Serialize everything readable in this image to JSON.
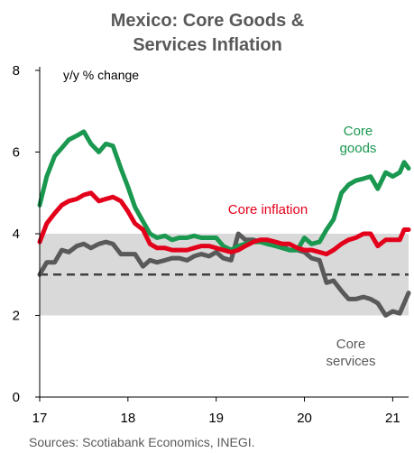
{
  "chart_data": {
    "type": "line",
    "title": [
      "Mexico: Core Goods &",
      "Services Inflation"
    ],
    "ylabel": "y/y % change",
    "xlabel": "",
    "source": "Sources: Scotiabank Economics, INEGI.",
    "ylim": [
      0,
      8
    ],
    "xlim": [
      2017.0,
      2021.18
    ],
    "y_ticks": [
      "0",
      "2",
      "4",
      "6",
      "8"
    ],
    "x_ticks": [
      {
        "value": 2017,
        "label": "17"
      },
      {
        "value": 2018,
        "label": "18"
      },
      {
        "value": 2019,
        "label": "19"
      },
      {
        "value": 2020,
        "label": "20"
      },
      {
        "value": 2021,
        "label": "21"
      }
    ],
    "target_band": {
      "low": 2,
      "high": 4,
      "color": "#d9d9d9"
    },
    "target_line": {
      "value": 3,
      "color": "#404040",
      "style": "dashed"
    },
    "grid": false,
    "series": [
      {
        "name": "Core services",
        "label_lines": [
          "Core",
          "services"
        ],
        "color": "#595959",
        "x": [
          2017.0,
          2017.08,
          2017.17,
          2017.25,
          2017.33,
          2017.42,
          2017.5,
          2017.58,
          2017.67,
          2017.75,
          2017.83,
          2017.92,
          2018.0,
          2018.08,
          2018.17,
          2018.25,
          2018.33,
          2018.42,
          2018.5,
          2018.58,
          2018.67,
          2018.75,
          2018.83,
          2018.92,
          2019.0,
          2019.08,
          2019.17,
          2019.25,
          2019.33,
          2019.42,
          2019.5,
          2019.58,
          2019.67,
          2019.75,
          2019.83,
          2019.92,
          2020.0,
          2020.08,
          2020.17,
          2020.25,
          2020.33,
          2020.42,
          2020.5,
          2020.58,
          2020.67,
          2020.75,
          2020.83,
          2020.92,
          2021.0,
          2021.08,
          2021.18
        ],
        "values": [
          3.0,
          3.3,
          3.3,
          3.6,
          3.55,
          3.7,
          3.75,
          3.65,
          3.75,
          3.8,
          3.75,
          3.5,
          3.5,
          3.5,
          3.2,
          3.35,
          3.3,
          3.35,
          3.4,
          3.4,
          3.35,
          3.45,
          3.5,
          3.45,
          3.55,
          3.4,
          3.35,
          4.0,
          3.85,
          3.85,
          3.8,
          3.8,
          3.75,
          3.7,
          3.6,
          3.6,
          3.55,
          3.4,
          3.35,
          2.8,
          2.85,
          2.6,
          2.4,
          2.4,
          2.45,
          2.4,
          2.3,
          2.0,
          2.1,
          2.05,
          2.55
        ]
      },
      {
        "name": "Core goods",
        "label_lines": [
          "Core",
          "goods"
        ],
        "color": "#1a9850",
        "x": [
          2017.0,
          2017.08,
          2017.17,
          2017.25,
          2017.33,
          2017.42,
          2017.5,
          2017.58,
          2017.67,
          2017.75,
          2017.83,
          2017.92,
          2018.0,
          2018.08,
          2018.17,
          2018.25,
          2018.33,
          2018.42,
          2018.5,
          2018.58,
          2018.67,
          2018.75,
          2018.83,
          2018.92,
          2019.0,
          2019.08,
          2019.17,
          2019.25,
          2019.33,
          2019.42,
          2019.5,
          2019.58,
          2019.67,
          2019.75,
          2019.83,
          2019.92,
          2020.0,
          2020.08,
          2020.17,
          2020.25,
          2020.33,
          2020.42,
          2020.5,
          2020.58,
          2020.67,
          2020.75,
          2020.83,
          2020.92,
          2021.0,
          2021.08,
          2021.13,
          2021.18
        ],
        "values": [
          4.7,
          5.4,
          5.9,
          6.1,
          6.3,
          6.4,
          6.5,
          6.2,
          6.0,
          6.2,
          6.15,
          5.6,
          5.15,
          4.65,
          4.3,
          4.0,
          3.9,
          3.95,
          3.85,
          3.9,
          3.9,
          3.95,
          3.9,
          3.9,
          3.9,
          3.7,
          3.6,
          3.7,
          3.75,
          3.8,
          3.8,
          3.75,
          3.7,
          3.65,
          3.6,
          3.6,
          3.9,
          3.75,
          3.8,
          4.1,
          4.35,
          5.0,
          5.2,
          5.3,
          5.35,
          5.4,
          5.1,
          5.5,
          5.4,
          5.5,
          5.75,
          5.6
        ]
      },
      {
        "name": "Core inflation",
        "label_lines": [
          "Core inflation"
        ],
        "color": "#e3001b",
        "x": [
          2017.0,
          2017.08,
          2017.17,
          2017.25,
          2017.33,
          2017.42,
          2017.5,
          2017.58,
          2017.67,
          2017.75,
          2017.83,
          2017.92,
          2018.0,
          2018.08,
          2018.17,
          2018.25,
          2018.33,
          2018.42,
          2018.5,
          2018.58,
          2018.67,
          2018.75,
          2018.83,
          2018.92,
          2019.0,
          2019.08,
          2019.17,
          2019.25,
          2019.33,
          2019.42,
          2019.5,
          2019.58,
          2019.67,
          2019.75,
          2019.83,
          2019.92,
          2020.0,
          2020.08,
          2020.17,
          2020.25,
          2020.33,
          2020.42,
          2020.5,
          2020.58,
          2020.67,
          2020.75,
          2020.83,
          2020.92,
          2021.0,
          2021.08,
          2021.13,
          2021.18
        ],
        "values": [
          3.8,
          4.25,
          4.5,
          4.7,
          4.8,
          4.85,
          4.95,
          5.0,
          4.8,
          4.85,
          4.9,
          4.8,
          4.55,
          4.25,
          4.1,
          3.75,
          3.65,
          3.65,
          3.6,
          3.6,
          3.6,
          3.65,
          3.7,
          3.7,
          3.65,
          3.6,
          3.55,
          3.6,
          3.7,
          3.8,
          3.85,
          3.85,
          3.8,
          3.75,
          3.75,
          3.65,
          3.6,
          3.6,
          3.55,
          3.5,
          3.6,
          3.75,
          3.85,
          3.9,
          4.0,
          4.0,
          3.7,
          3.85,
          3.85,
          3.85,
          4.1,
          4.1
        ]
      }
    ]
  }
}
